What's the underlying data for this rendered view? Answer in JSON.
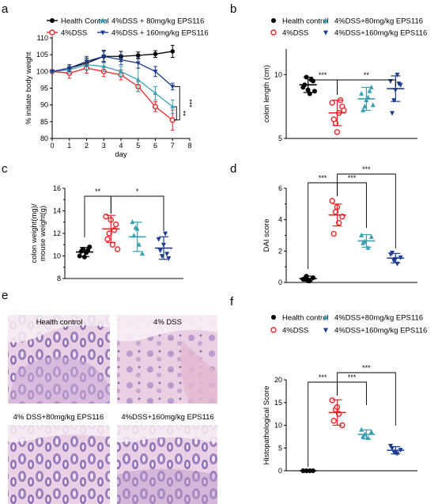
{
  "colors": {
    "black": "#000000",
    "red": "#e8262a",
    "teal": "#3a9fb0",
    "navy": "#1d3d8f"
  },
  "panels": [
    {
      "letter": "a",
      "type": "line",
      "legend": [
        "Health Control",
        "4%DSS",
        "4%DSS + 80mg/kg EPS116",
        "4%DSS + 160mg/kg EPS116"
      ],
      "xlabel": "day",
      "ylabel": "% initiate body weight",
      "xlim": [
        0,
        8
      ],
      "ylim": [
        80,
        110
      ],
      "xticks": [
        "0",
        "1",
        "2",
        "3",
        "4",
        "5",
        "6",
        "7",
        "8"
      ],
      "yticks": [
        "80",
        "85",
        "90",
        "95",
        "100",
        "105",
        "110"
      ],
      "sig_labels": [
        "***",
        "**",
        "***"
      ],
      "series": [
        {
          "name": "Health Control",
          "color": "#000000",
          "marker": "circle-filled",
          "x": [
            0,
            1,
            2,
            3,
            4,
            5,
            6,
            7
          ],
          "values": [
            100,
            101,
            102.5,
            104.5,
            104.5,
            104.8,
            105.2,
            106
          ],
          "err": [
            0,
            1,
            1.5,
            1.8,
            1.5,
            1,
            1,
            1.8
          ]
        },
        {
          "name": "4%DSS",
          "color": "#e8262a",
          "marker": "circle-open",
          "x": [
            0,
            1,
            2,
            3,
            4,
            5,
            6,
            7
          ],
          "values": [
            100,
            99.5,
            101,
            100,
            99,
            95.5,
            89.5,
            85.5
          ],
          "err": [
            0,
            1.5,
            1.5,
            1.5,
            1.5,
            1.5,
            1.5,
            3
          ]
        },
        {
          "name": "4%DSS + 80mg/kg EPS116",
          "color": "#3a9fb0",
          "marker": "triangle-up",
          "x": [
            0,
            1,
            2,
            3,
            4,
            5,
            6,
            7
          ],
          "values": [
            100,
            100.5,
            102,
            101.5,
            100,
            97.5,
            93.5,
            89.5
          ],
          "err": [
            0,
            1,
            1.5,
            1.5,
            1.5,
            3.5,
            2,
            2
          ]
        },
        {
          "name": "4%DSS + 160mg/kg EPS116",
          "color": "#1d3d8f",
          "marker": "triangle-down",
          "x": [
            0,
            1,
            2,
            3,
            4,
            5,
            6,
            7
          ],
          "values": [
            100,
            101,
            103,
            104.5,
            103.5,
            102.5,
            100,
            95.5
          ],
          "err": [
            0,
            1,
            1.5,
            1.5,
            1.5,
            1.5,
            1.5,
            1
          ]
        }
      ]
    },
    {
      "letter": "b",
      "type": "scatter",
      "legend": [
        "Health control",
        "4%DSS",
        "4%DSS+80mg/kg EPS116",
        "4%DSS+160mg/kg EPS116"
      ],
      "ylabel": "colon length (cm)",
      "ylim": [
        5,
        12
      ],
      "yticks": [
        "5",
        "10"
      ],
      "sig_labels": [
        "***",
        "**"
      ],
      "groups": [
        {
          "name": "Health control",
          "color": "#000000",
          "marker": "circle-filled",
          "mean": 9.2,
          "sd": 0.6,
          "points": [
            9.0,
            9.8,
            8.5,
            9.5,
            9.2,
            8.8,
            9.6,
            8.7
          ]
        },
        {
          "name": "4%DSS",
          "color": "#e8262a",
          "marker": "circle-open",
          "mean": 7.0,
          "sd": 1.0,
          "points": [
            7.8,
            6.2,
            7.0,
            7.5,
            6.5,
            5.5,
            8.0,
            7.2
          ]
        },
        {
          "name": "4%DSS+80mg/kg EPS116",
          "color": "#3a9fb0",
          "marker": "triangle-up",
          "mean": 8.1,
          "sd": 0.9,
          "points": [
            8.5,
            7.5,
            8.2,
            9.0,
            7.2,
            8.0,
            8.7,
            7.6
          ]
        },
        {
          "name": "4%DSS+160mg/kg EPS116",
          "color": "#1d3d8f",
          "marker": "triangle-down",
          "mean": 8.9,
          "sd": 1.0,
          "points": [
            9.5,
            8.0,
            10.0,
            9.2,
            7.0,
            8.8,
            9.3
          ]
        }
      ]
    },
    {
      "letter": "c",
      "type": "scatter",
      "ylabel": "colon weight(mg)/ mouse weight(g)",
      "ylim": [
        8,
        16
      ],
      "yticks": [
        "8",
        "10",
        "12",
        "14",
        "16"
      ],
      "sig_labels": [
        "**",
        "*"
      ],
      "groups": [
        {
          "name": "Health control",
          "color": "#000000",
          "marker": "circle-filled",
          "mean": 10.35,
          "sd": 0.4,
          "points": [
            10.0,
            10.6,
            10.3,
            10.8,
            10.4,
            9.9,
            10.5
          ]
        },
        {
          "name": "4%DSS",
          "color": "#e8262a",
          "marker": "circle-open",
          "mean": 12.4,
          "sd": 1.2,
          "points": [
            13.5,
            12.0,
            11.0,
            12.8,
            11.5,
            13.2,
            12.3,
            10.6
          ]
        },
        {
          "name": "4%DSS+80mg/kg EPS116",
          "color": "#3a9fb0",
          "marker": "triangle-up",
          "mean": 11.7,
          "sd": 1.3,
          "points": [
            13.0,
            12.5,
            11.0,
            10.2,
            11.8,
            12.4
          ]
        },
        {
          "name": "4%DSS+160mg/kg EPS116",
          "color": "#1d3d8f",
          "marker": "triangle-down",
          "mean": 10.7,
          "sd": 1.0,
          "points": [
            11.5,
            10.0,
            12.0,
            9.8,
            10.5,
            11.0,
            10.2
          ]
        }
      ]
    },
    {
      "letter": "d",
      "type": "scatter",
      "ylabel": "DAI score",
      "ylim": [
        0,
        6
      ],
      "yticks": [
        "0",
        "2",
        "4",
        "6"
      ],
      "sig_labels": [
        "***",
        "***",
        "***"
      ],
      "groups": [
        {
          "name": "Health control",
          "color": "#000000",
          "marker": "circle-filled",
          "mean": 0.25,
          "sd": 0.15,
          "points": [
            0.2,
            0.4,
            0.1,
            0.3,
            0.2,
            0.1
          ]
        },
        {
          "name": "4%DSS",
          "color": "#e8262a",
          "marker": "circle-open",
          "mean": 4.3,
          "sd": 0.7,
          "points": [
            5.2,
            4.5,
            3.8,
            4.2,
            3.1,
            4.8
          ]
        },
        {
          "name": "4%DSS+80mg/kg EPS116",
          "color": "#3a9fb0",
          "marker": "triangle-up",
          "mean": 2.65,
          "sd": 0.4,
          "points": [
            3.0,
            2.6,
            2.2,
            2.9,
            2.5
          ]
        },
        {
          "name": "4%DSS+160mg/kg EPS116",
          "color": "#1d3d8f",
          "marker": "triangle-down",
          "mean": 1.55,
          "sd": 0.3,
          "points": [
            1.8,
            1.4,
            1.2,
            1.6,
            1.9,
            1.5
          ]
        }
      ]
    },
    {
      "letter": "f",
      "type": "scatter",
      "legend": [
        "Health control",
        "4%DSS",
        "4%DSS+80mg/kg EPS116",
        "4%DSS+160mg/kg EPS116"
      ],
      "ylabel": "Histopathological Score",
      "ylim": [
        0,
        20
      ],
      "yticks": [
        "0",
        "5",
        "10",
        "15",
        "20"
      ],
      "sig_labels": [
        "***",
        "***",
        "***"
      ],
      "groups": [
        {
          "name": "Health control",
          "color": "#000000",
          "marker": "circle-filled",
          "mean": 0,
          "sd": 0,
          "points": [
            0,
            0,
            0,
            0
          ]
        },
        {
          "name": "4%DSS",
          "color": "#e8262a",
          "marker": "circle-open",
          "mean": 12.8,
          "sd": 2.8,
          "points": [
            15.5,
            13.5,
            12.5,
            10.0,
            11.0,
            14.0
          ]
        },
        {
          "name": "4%DSS+80mg/kg EPS116",
          "color": "#3a9fb0",
          "marker": "triangle-up",
          "mean": 8.0,
          "sd": 1.0,
          "points": [
            9.0,
            8.0,
            7.2,
            8.5,
            7.5
          ]
        },
        {
          "name": "4%DSS+160mg/kg EPS116",
          "color": "#1d3d8f",
          "marker": "triangle-down",
          "mean": 4.5,
          "sd": 0.8,
          "points": [
            5.5,
            4.2,
            3.8,
            4.6,
            5.0,
            4.0
          ]
        }
      ]
    }
  ],
  "panel_e": {
    "letter": "e",
    "titles": [
      "Health control",
      "4% DSS",
      "4% DSS+80mg/kg EPS116",
      "4%DSS+160mg/kg EPS116"
    ]
  }
}
